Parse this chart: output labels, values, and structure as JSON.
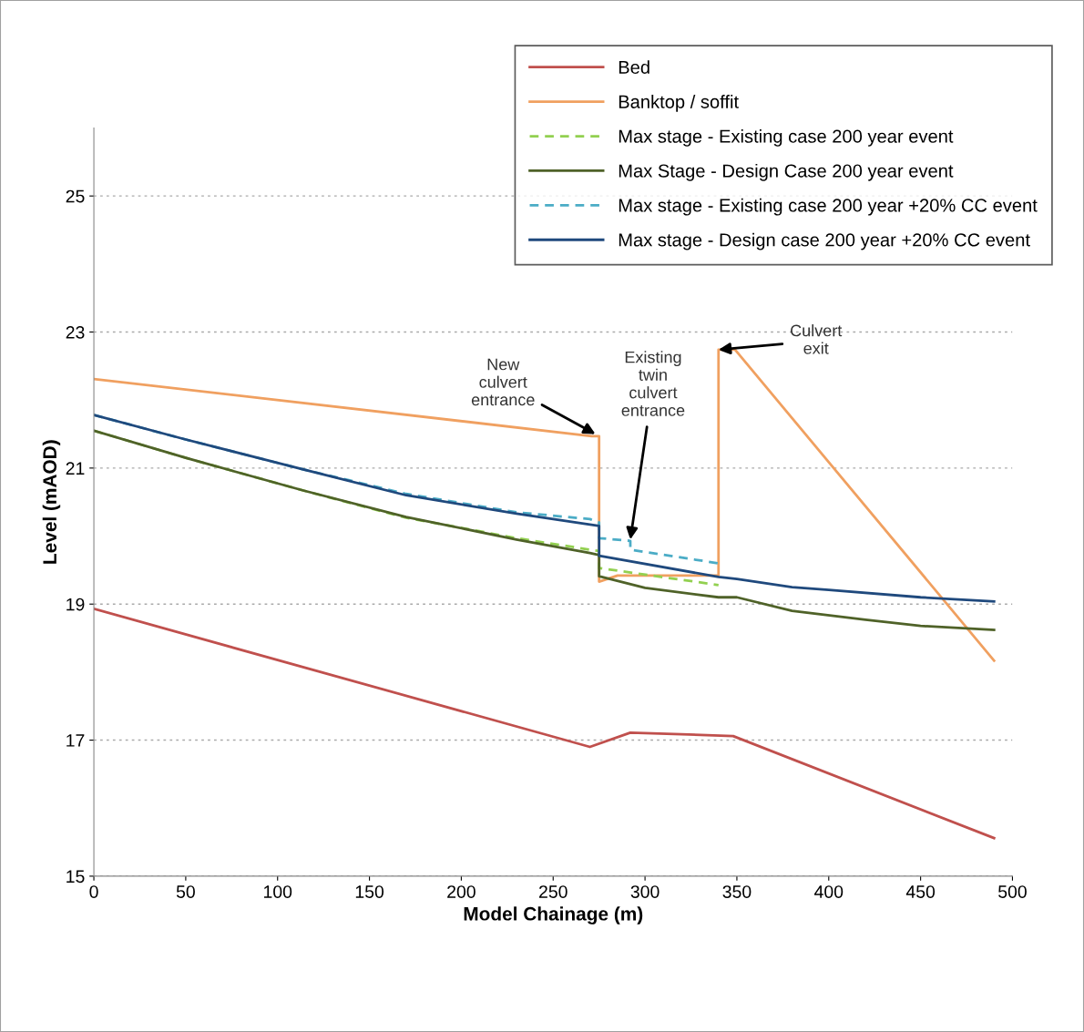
{
  "chart_data": {
    "type": "line",
    "xlabel": "Model Chainage (m)",
    "ylabel": "Level (mAOD)",
    "xlim": [
      0,
      500
    ],
    "xticks": [
      0,
      50,
      100,
      150,
      200,
      250,
      300,
      350,
      400,
      450,
      500
    ],
    "ylim": [
      15,
      26
    ],
    "yticks": [
      15,
      17,
      19,
      21,
      23,
      25
    ],
    "grid": "y",
    "legend": "top right",
    "series": [
      {
        "name": "Bed",
        "color": "#c0504d",
        "line_style": "solid",
        "x": [
          0,
          270,
          292,
          348,
          490
        ],
        "values": [
          18.93,
          16.9,
          17.11,
          17.06,
          15.56
        ]
      },
      {
        "name": "Banktop / soffit",
        "color": "#f0a060",
        "line_style": "solid",
        "x": [
          0,
          271,
          275,
          275,
          285,
          340,
          340,
          349,
          490
        ],
        "values": [
          22.31,
          21.47,
          21.47,
          19.33,
          19.42,
          19.42,
          22.74,
          22.74,
          18.17
        ]
      },
      {
        "name": "Max stage - Existing case 200 year event",
        "color": "#92d050",
        "line_style": "dashed",
        "x": [
          0,
          50,
          114,
          170,
          230,
          270,
          275,
          275,
          340
        ],
        "values": [
          21.55,
          21.15,
          20.67,
          20.27,
          19.97,
          19.8,
          19.78,
          19.53,
          19.28
        ]
      },
      {
        "name": "Max Stage - Design Case 200 year event",
        "color": "#4f6228",
        "line_style": "solid",
        "x": [
          0,
          50,
          114,
          170,
          230,
          270,
          275,
          275,
          300,
          340,
          350,
          380,
          420,
          450,
          490
        ],
        "values": [
          21.55,
          21.15,
          20.67,
          20.28,
          19.95,
          19.75,
          19.72,
          19.41,
          19.24,
          19.1,
          19.1,
          18.9,
          18.77,
          18.68,
          18.62
        ]
      },
      {
        "name": "Max stage - Existing case 200 year +20% CC event",
        "color": "#4bacc6",
        "line_style": "dashed",
        "x": [
          0,
          50,
          114,
          170,
          230,
          270,
          275,
          275,
          292,
          292,
          340
        ],
        "values": [
          21.78,
          21.42,
          20.98,
          20.62,
          20.35,
          20.25,
          20.2,
          19.97,
          19.93,
          19.8,
          19.6
        ]
      },
      {
        "name": "Max stage - Design case 200 year +20% CC event",
        "color": "#1f497d",
        "line_style": "solid",
        "x": [
          0,
          50,
          114,
          170,
          230,
          270,
          275,
          275,
          340,
          350,
          380,
          400,
          450,
          490
        ],
        "values": [
          21.78,
          21.42,
          20.98,
          20.6,
          20.33,
          20.17,
          20.15,
          19.71,
          19.4,
          19.37,
          19.25,
          19.21,
          19.1,
          19.04
        ]
      }
    ],
    "annotations": [
      {
        "text": "New\nculvert\nentrance",
        "x": 273,
        "y": 21.5
      },
      {
        "text": "Existing\ntwin\nculvert\nentrance",
        "x": 292,
        "y": 19.95
      },
      {
        "text": "Culvert\nexit",
        "x": 340,
        "y": 22.74
      }
    ]
  }
}
